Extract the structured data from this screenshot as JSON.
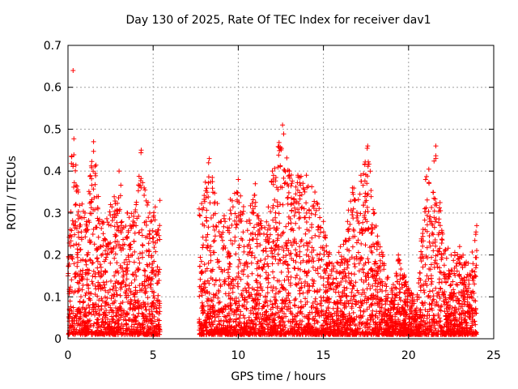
{
  "chart_data": {
    "type": "scatter",
    "title": "Day 130 of 2025, Rate Of TEC Index for receiver dav1",
    "xlabel": "GPS time / hours",
    "ylabel": "ROTI / TECUs",
    "xlim": [
      0,
      25
    ],
    "ylim": [
      0,
      0.7
    ],
    "xticks": [
      "0",
      "5",
      "10",
      "15",
      "20",
      "25"
    ],
    "yticks": [
      "0",
      "0.1",
      "0.2",
      "0.3",
      "0.4",
      "0.5",
      "0.6",
      "0.7"
    ],
    "grid": true,
    "marker": "+",
    "color": "#ff0000",
    "data_gaps_hours": [
      [
        5.5,
        7.6
      ]
    ],
    "envelope": [
      {
        "x": 0.0,
        "y_max": 0.15
      },
      {
        "x": 0.3,
        "y_max": 0.64
      },
      {
        "x": 0.6,
        "y_max": 0.35
      },
      {
        "x": 1.0,
        "y_max": 0.3
      },
      {
        "x": 1.5,
        "y_max": 0.47
      },
      {
        "x": 2.0,
        "y_max": 0.28
      },
      {
        "x": 2.5,
        "y_max": 0.32
      },
      {
        "x": 3.0,
        "y_max": 0.4
      },
      {
        "x": 3.5,
        "y_max": 0.3
      },
      {
        "x": 4.0,
        "y_max": 0.32
      },
      {
        "x": 4.3,
        "y_max": 0.45
      },
      {
        "x": 4.8,
        "y_max": 0.3
      },
      {
        "x": 5.4,
        "y_max": 0.33
      },
      {
        "x": 7.7,
        "y_max": 0.31
      },
      {
        "x": 8.3,
        "y_max": 0.43
      },
      {
        "x": 9.0,
        "y_max": 0.28
      },
      {
        "x": 10.0,
        "y_max": 0.38
      },
      {
        "x": 10.5,
        "y_max": 0.28
      },
      {
        "x": 11.0,
        "y_max": 0.37
      },
      {
        "x": 11.5,
        "y_max": 0.25
      },
      {
        "x": 12.0,
        "y_max": 0.4
      },
      {
        "x": 12.6,
        "y_max": 0.51
      },
      {
        "x": 13.0,
        "y_max": 0.4
      },
      {
        "x": 13.5,
        "y_max": 0.39
      },
      {
        "x": 14.0,
        "y_max": 0.39
      },
      {
        "x": 14.5,
        "y_max": 0.35
      },
      {
        "x": 15.0,
        "y_max": 0.28
      },
      {
        "x": 15.5,
        "y_max": 0.18
      },
      {
        "x": 16.0,
        "y_max": 0.22
      },
      {
        "x": 16.7,
        "y_max": 0.36
      },
      {
        "x": 17.2,
        "y_max": 0.39
      },
      {
        "x": 17.6,
        "y_max": 0.46
      },
      {
        "x": 18.0,
        "y_max": 0.3
      },
      {
        "x": 18.5,
        "y_max": 0.2
      },
      {
        "x": 19.0,
        "y_max": 0.12
      },
      {
        "x": 19.4,
        "y_max": 0.2
      },
      {
        "x": 20.0,
        "y_max": 0.12
      },
      {
        "x": 20.5,
        "y_max": 0.1
      },
      {
        "x": 21.0,
        "y_max": 0.38
      },
      {
        "x": 21.6,
        "y_max": 0.46
      },
      {
        "x": 22.0,
        "y_max": 0.25
      },
      {
        "x": 22.5,
        "y_max": 0.2
      },
      {
        "x": 23.0,
        "y_max": 0.22
      },
      {
        "x": 23.5,
        "y_max": 0.18
      },
      {
        "x": 24.0,
        "y_max": 0.27
      }
    ]
  }
}
